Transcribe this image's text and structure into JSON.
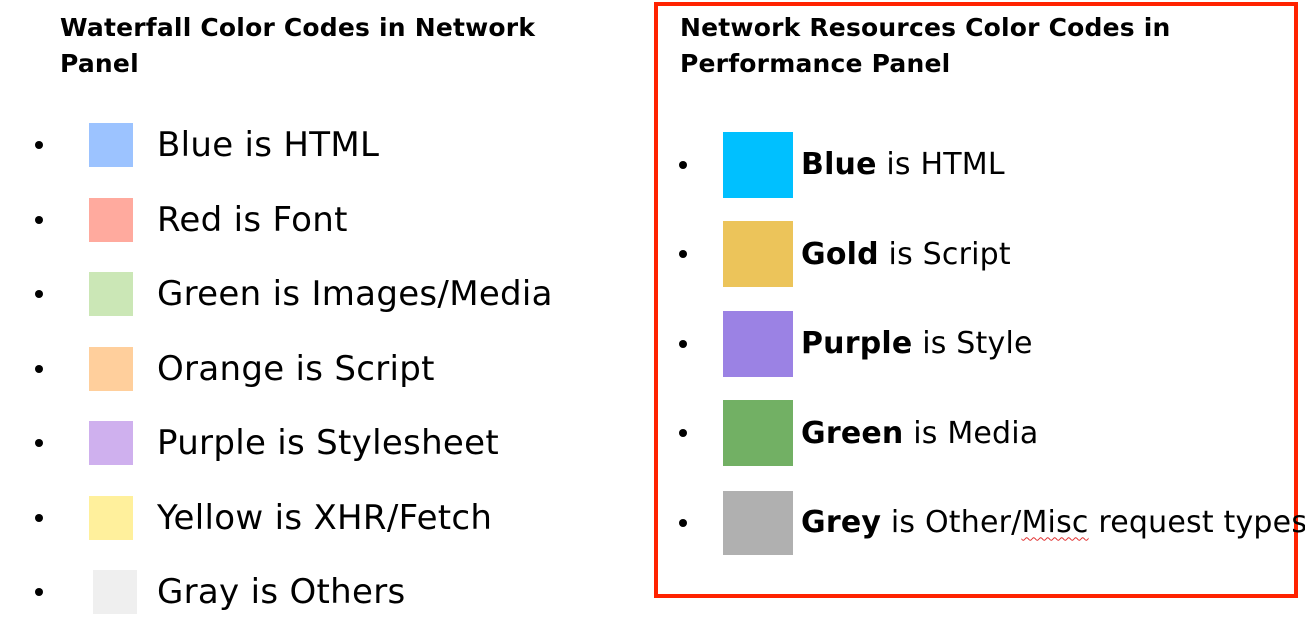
{
  "left_panel": {
    "title": "Waterfall Color Codes in Network Panel",
    "items": [
      {
        "label": "Blue is HTML",
        "color": "#9cc3ff"
      },
      {
        "label": "Red is Font",
        "color": "#ffaa9e"
      },
      {
        "label": "Green is Images/Media",
        "color": "#cbe7b6"
      },
      {
        "label": "Orange is Script",
        "color": "#ffcf9c"
      },
      {
        "label": "Purple is Stylesheet",
        "color": "#cfb0ee"
      },
      {
        "label": "Yellow is XHR/Fetch",
        "color": "#fff09c"
      },
      {
        "label": "Gray is Others",
        "color": "#efefef"
      }
    ]
  },
  "right_panel": {
    "title": "Network Resources Color Codes in Performance Panel",
    "border_color": "#ff2200",
    "items": [
      {
        "color_word": "Blue",
        "rest": " is HTML",
        "color": "#00c0ff"
      },
      {
        "color_word": "Gold",
        "rest": " is Script",
        "color": "#ecc45a"
      },
      {
        "color_word": "Purple",
        "rest": " is Style",
        "color": "#9b82e4"
      },
      {
        "color_word": "Green",
        "rest": " is Media",
        "color": "#72b064"
      },
      {
        "color_word": "Grey",
        "rest_a": " is Other/",
        "rest_b": "Misc",
        "rest_c": " request types",
        "color": "#b0b0b0"
      }
    ]
  }
}
